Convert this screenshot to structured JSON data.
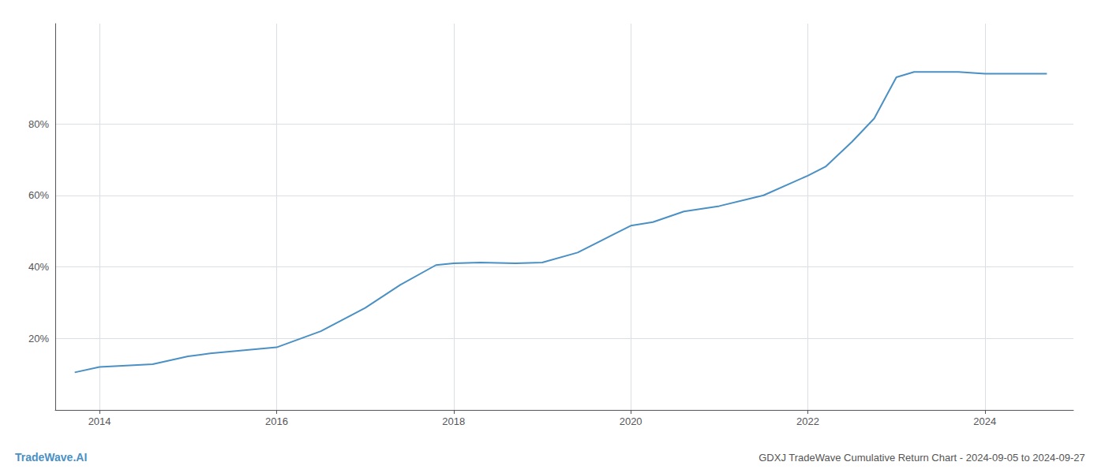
{
  "chart_data": {
    "type": "line",
    "title": "GDXJ TradeWave Cumulative Return Chart - 2024-09-05 to 2024-09-27",
    "annotations": [
      "TradeWave.AI"
    ],
    "color": "#4a90c4",
    "grid": true,
    "x": [
      2013.72,
      2014.0,
      2014.6,
      2015.0,
      2015.25,
      2016.0,
      2016.5,
      2017.0,
      2017.4,
      2017.8,
      2018.0,
      2018.3,
      2018.7,
      2019.0,
      2019.4,
      2019.8,
      2020.0,
      2020.25,
      2020.6,
      2021.0,
      2021.5,
      2022.0,
      2022.2,
      2022.5,
      2022.75,
      2023.0,
      2023.2,
      2023.7,
      2024.0,
      2024.7
    ],
    "values": [
      10.5,
      12.0,
      12.8,
      15.0,
      15.8,
      17.5,
      22.0,
      28.5,
      35.0,
      40.5,
      41.0,
      41.2,
      41.0,
      41.2,
      44.0,
      49.0,
      51.5,
      52.5,
      55.5,
      57.0,
      60.0,
      65.5,
      68.0,
      75.0,
      81.5,
      93.0,
      94.5,
      94.5,
      94.0,
      94.0
    ],
    "xlim": [
      2013.5,
      2025.0
    ],
    "ylim": [
      0,
      108
    ],
    "xticks": [
      2014,
      2016,
      2018,
      2020,
      2022,
      2024
    ],
    "yticks": [
      {
        "value": 20,
        "label": "20%"
      },
      {
        "value": 40,
        "label": "40%"
      },
      {
        "value": 60,
        "label": "60%"
      },
      {
        "value": 80,
        "label": "80%"
      }
    ]
  }
}
